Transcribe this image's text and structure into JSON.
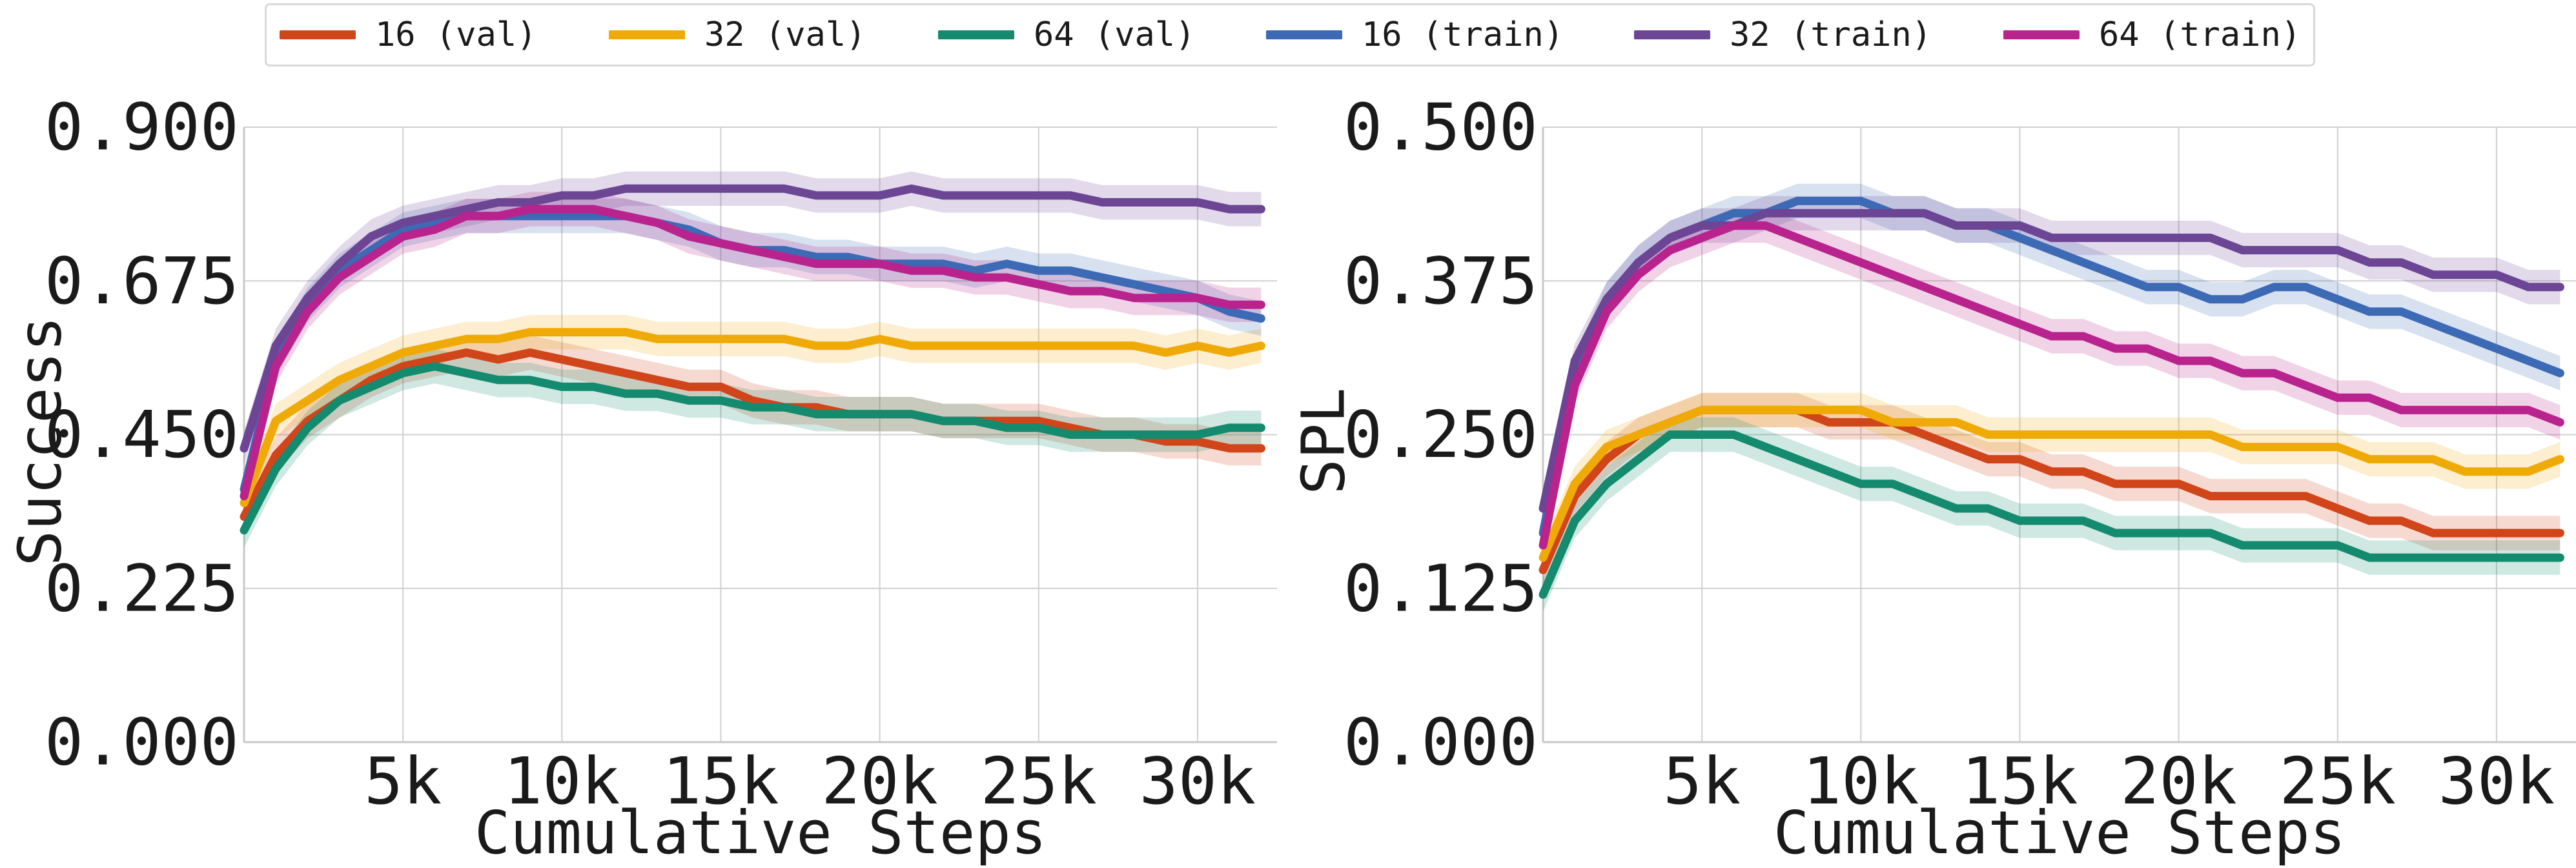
{
  "legend": [
    {
      "name": "16 (val)",
      "color": "#d1451b"
    },
    {
      "name": "32 (val)",
      "color": "#efaa08"
    },
    {
      "name": "64 (val)",
      "color": "#148a6e"
    },
    {
      "name": "16 (train)",
      "color": "#3d6ab5"
    },
    {
      "name": "32 (train)",
      "color": "#6c4595"
    },
    {
      "name": "64 (train)",
      "color": "#b8238e"
    }
  ],
  "chart_data": [
    {
      "type": "line",
      "xlabel": "Cumulative Steps",
      "ylabel": "Success",
      "xlim": [
        0,
        32500
      ],
      "ylim": [
        0,
        0.9
      ],
      "xticks": [
        5000,
        10000,
        15000,
        20000,
        25000,
        30000
      ],
      "xtick_labels": [
        "5k",
        "10k",
        "15k",
        "20k",
        "25k",
        "30k"
      ],
      "yticks": [
        0,
        0.225,
        0.45,
        0.675,
        0.9
      ],
      "ytick_labels": [
        "0.000",
        "0.225",
        "0.450",
        "0.675",
        "0.900"
      ],
      "grid": true,
      "x": [
        0,
        1000,
        2000,
        3000,
        4000,
        5000,
        6000,
        7000,
        8000,
        9000,
        10000,
        11000,
        12000,
        13000,
        14000,
        15000,
        16000,
        17000,
        18000,
        19000,
        20000,
        21000,
        22000,
        23000,
        24000,
        25000,
        26000,
        27000,
        28000,
        29000,
        30000,
        31000,
        32000
      ],
      "series": [
        {
          "name": "16 (val)",
          "values": [
            0.33,
            0.42,
            0.47,
            0.5,
            0.53,
            0.55,
            0.56,
            0.57,
            0.56,
            0.57,
            0.56,
            0.55,
            0.54,
            0.53,
            0.52,
            0.52,
            0.5,
            0.49,
            0.49,
            0.48,
            0.48,
            0.48,
            0.47,
            0.47,
            0.47,
            0.47,
            0.46,
            0.45,
            0.45,
            0.44,
            0.44,
            0.43,
            0.43
          ]
        },
        {
          "name": "32 (val)",
          "values": [
            0.35,
            0.47,
            0.5,
            0.53,
            0.55,
            0.57,
            0.58,
            0.59,
            0.59,
            0.6,
            0.6,
            0.6,
            0.6,
            0.59,
            0.59,
            0.59,
            0.59,
            0.59,
            0.58,
            0.58,
            0.59,
            0.58,
            0.58,
            0.58,
            0.58,
            0.58,
            0.58,
            0.58,
            0.58,
            0.57,
            0.58,
            0.57,
            0.58
          ]
        },
        {
          "name": "64 (val)",
          "values": [
            0.31,
            0.4,
            0.46,
            0.5,
            0.52,
            0.54,
            0.55,
            0.54,
            0.53,
            0.53,
            0.52,
            0.52,
            0.51,
            0.51,
            0.5,
            0.5,
            0.49,
            0.49,
            0.48,
            0.48,
            0.48,
            0.48,
            0.47,
            0.47,
            0.46,
            0.46,
            0.45,
            0.45,
            0.45,
            0.45,
            0.45,
            0.46,
            0.46
          ]
        },
        {
          "name": "16 (train)",
          "values": [
            0.37,
            0.56,
            0.64,
            0.69,
            0.72,
            0.75,
            0.76,
            0.77,
            0.77,
            0.77,
            0.77,
            0.77,
            0.77,
            0.76,
            0.75,
            0.73,
            0.72,
            0.72,
            0.71,
            0.71,
            0.7,
            0.7,
            0.7,
            0.69,
            0.7,
            0.69,
            0.69,
            0.68,
            0.67,
            0.66,
            0.65,
            0.63,
            0.62
          ]
        },
        {
          "name": "32 (train)",
          "values": [
            0.43,
            0.58,
            0.65,
            0.7,
            0.74,
            0.76,
            0.77,
            0.78,
            0.79,
            0.79,
            0.8,
            0.8,
            0.81,
            0.81,
            0.81,
            0.81,
            0.81,
            0.81,
            0.8,
            0.8,
            0.8,
            0.81,
            0.8,
            0.8,
            0.8,
            0.8,
            0.8,
            0.79,
            0.79,
            0.79,
            0.79,
            0.78,
            0.78
          ]
        },
        {
          "name": "64 (train)",
          "values": [
            0.36,
            0.55,
            0.63,
            0.68,
            0.71,
            0.74,
            0.75,
            0.77,
            0.77,
            0.78,
            0.78,
            0.78,
            0.77,
            0.76,
            0.74,
            0.73,
            0.72,
            0.71,
            0.7,
            0.7,
            0.7,
            0.69,
            0.69,
            0.68,
            0.68,
            0.67,
            0.66,
            0.66,
            0.65,
            0.65,
            0.65,
            0.64,
            0.64
          ]
        }
      ]
    },
    {
      "type": "line",
      "xlabel": "Cumulative Steps",
      "ylabel": "SPL",
      "xlim": [
        0,
        32500
      ],
      "ylim": [
        0,
        0.5
      ],
      "xticks": [
        5000,
        10000,
        15000,
        20000,
        25000,
        30000
      ],
      "xtick_labels": [
        "5k",
        "10k",
        "15k",
        "20k",
        "25k",
        "30k"
      ],
      "yticks": [
        0,
        0.125,
        0.25,
        0.375,
        0.5
      ],
      "ytick_labels": [
        "0.000",
        "0.125",
        "0.250",
        "0.375",
        "0.500"
      ],
      "grid": true,
      "x": [
        0,
        1000,
        2000,
        3000,
        4000,
        5000,
        6000,
        7000,
        8000,
        9000,
        10000,
        11000,
        12000,
        13000,
        14000,
        15000,
        16000,
        17000,
        18000,
        19000,
        20000,
        21000,
        22000,
        23000,
        24000,
        25000,
        26000,
        27000,
        28000,
        29000,
        30000,
        31000,
        32000
      ],
      "series": [
        {
          "name": "16 (val)",
          "values": [
            0.14,
            0.2,
            0.23,
            0.25,
            0.26,
            0.27,
            0.27,
            0.27,
            0.27,
            0.26,
            0.26,
            0.26,
            0.25,
            0.24,
            0.23,
            0.23,
            0.22,
            0.22,
            0.21,
            0.21,
            0.21,
            0.2,
            0.2,
            0.2,
            0.2,
            0.19,
            0.18,
            0.18,
            0.17,
            0.17,
            0.17,
            0.17,
            0.17
          ]
        },
        {
          "name": "32 (val)",
          "values": [
            0.15,
            0.21,
            0.24,
            0.25,
            0.26,
            0.27,
            0.27,
            0.27,
            0.27,
            0.27,
            0.27,
            0.26,
            0.26,
            0.26,
            0.25,
            0.25,
            0.25,
            0.25,
            0.25,
            0.25,
            0.25,
            0.25,
            0.24,
            0.24,
            0.24,
            0.24,
            0.23,
            0.23,
            0.23,
            0.22,
            0.22,
            0.22,
            0.23
          ]
        },
        {
          "name": "64 (val)",
          "values": [
            0.12,
            0.18,
            0.21,
            0.23,
            0.25,
            0.25,
            0.25,
            0.24,
            0.23,
            0.22,
            0.21,
            0.21,
            0.2,
            0.19,
            0.19,
            0.18,
            0.18,
            0.18,
            0.17,
            0.17,
            0.17,
            0.17,
            0.16,
            0.16,
            0.16,
            0.16,
            0.15,
            0.15,
            0.15,
            0.15,
            0.15,
            0.15,
            0.15
          ]
        },
        {
          "name": "16 (train)",
          "values": [
            0.17,
            0.3,
            0.36,
            0.39,
            0.41,
            0.42,
            0.43,
            0.43,
            0.44,
            0.44,
            0.44,
            0.43,
            0.43,
            0.42,
            0.42,
            0.41,
            0.4,
            0.39,
            0.38,
            0.37,
            0.37,
            0.36,
            0.36,
            0.37,
            0.37,
            0.36,
            0.35,
            0.35,
            0.34,
            0.33,
            0.32,
            0.31,
            0.3
          ]
        },
        {
          "name": "32 (train)",
          "values": [
            0.19,
            0.31,
            0.36,
            0.39,
            0.41,
            0.42,
            0.42,
            0.43,
            0.43,
            0.43,
            0.43,
            0.43,
            0.43,
            0.42,
            0.42,
            0.42,
            0.41,
            0.41,
            0.41,
            0.41,
            0.41,
            0.41,
            0.4,
            0.4,
            0.4,
            0.4,
            0.39,
            0.39,
            0.38,
            0.38,
            0.38,
            0.37,
            0.37
          ]
        },
        {
          "name": "64 (train)",
          "values": [
            0.16,
            0.29,
            0.35,
            0.38,
            0.4,
            0.41,
            0.42,
            0.42,
            0.41,
            0.4,
            0.39,
            0.38,
            0.37,
            0.36,
            0.35,
            0.34,
            0.33,
            0.33,
            0.32,
            0.32,
            0.31,
            0.31,
            0.3,
            0.3,
            0.29,
            0.28,
            0.28,
            0.27,
            0.27,
            0.27,
            0.27,
            0.27,
            0.26
          ]
        }
      ]
    }
  ]
}
